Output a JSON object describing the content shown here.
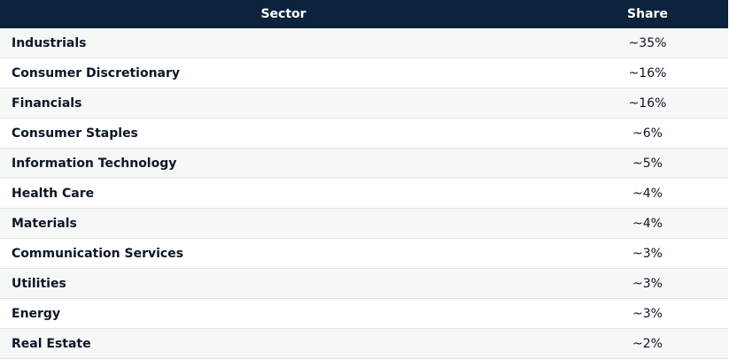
{
  "table": {
    "headers": {
      "sector": "Sector",
      "share": "Share"
    },
    "rows": [
      {
        "sector": "Industrials",
        "share": "~35%"
      },
      {
        "sector": "Consumer Discretionary",
        "share": "~16%"
      },
      {
        "sector": "Financials",
        "share": "~16%"
      },
      {
        "sector": "Consumer Staples",
        "share": "~6%"
      },
      {
        "sector": "Information Technology",
        "share": "~5%"
      },
      {
        "sector": "Health Care",
        "share": "~4%"
      },
      {
        "sector": "Materials",
        "share": "~4%"
      },
      {
        "sector": "Communication Services",
        "share": "~3%"
      },
      {
        "sector": "Utilities",
        "share": "~3%"
      },
      {
        "sector": "Energy",
        "share": "~3%"
      },
      {
        "sector": "Real Estate",
        "share": "~2%"
      }
    ]
  },
  "colors": {
    "header_bg": "#0c223d",
    "header_text": "#ffffff",
    "row_alt_bg": "#f6f8f8",
    "row_bg": "#ffffff",
    "text": "#0c1626",
    "divider": "#dfe3e8"
  }
}
